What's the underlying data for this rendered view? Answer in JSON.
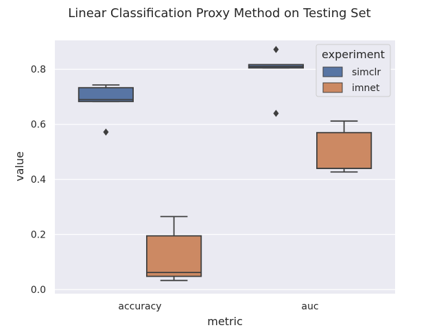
{
  "chart_data": {
    "type": "boxplot",
    "title": "Linear Classification Proxy Method on Testing Set",
    "xlabel": "metric",
    "ylabel": "value",
    "categories": [
      "accuracy",
      "auc"
    ],
    "ylim": [
      -0.015,
      0.905
    ],
    "yticks": [
      0.0,
      0.2,
      0.4,
      0.6,
      0.8
    ],
    "yticklabels": [
      "0.0",
      "0.2",
      "0.4",
      "0.6",
      "0.8"
    ],
    "grid": true,
    "background": "#EAEAF2",
    "legend": {
      "title": "experiment",
      "placement": "top-right"
    },
    "series": [
      {
        "name": "simclr",
        "color": "#5875A4",
        "boxes": [
          {
            "category": "accuracy",
            "whislo": 0.683,
            "q1": 0.683,
            "med": 0.69,
            "q3": 0.733,
            "whishi": 0.743,
            "fliers": [
              0.572
            ]
          },
          {
            "category": "auc",
            "whislo": 0.805,
            "q1": 0.805,
            "med": 0.81,
            "q3": 0.817,
            "whishi": 0.817,
            "fliers": [
              0.872,
              0.64
            ]
          }
        ]
      },
      {
        "name": "imnet",
        "color": "#CC8963",
        "boxes": [
          {
            "category": "accuracy",
            "whislo": 0.033,
            "q1": 0.048,
            "med": 0.062,
            "q3": 0.195,
            "whishi": 0.265,
            "fliers": []
          },
          {
            "category": "auc",
            "whislo": 0.427,
            "q1": 0.44,
            "med": 0.44,
            "q3": 0.57,
            "whishi": 0.612,
            "fliers": []
          }
        ]
      }
    ]
  }
}
